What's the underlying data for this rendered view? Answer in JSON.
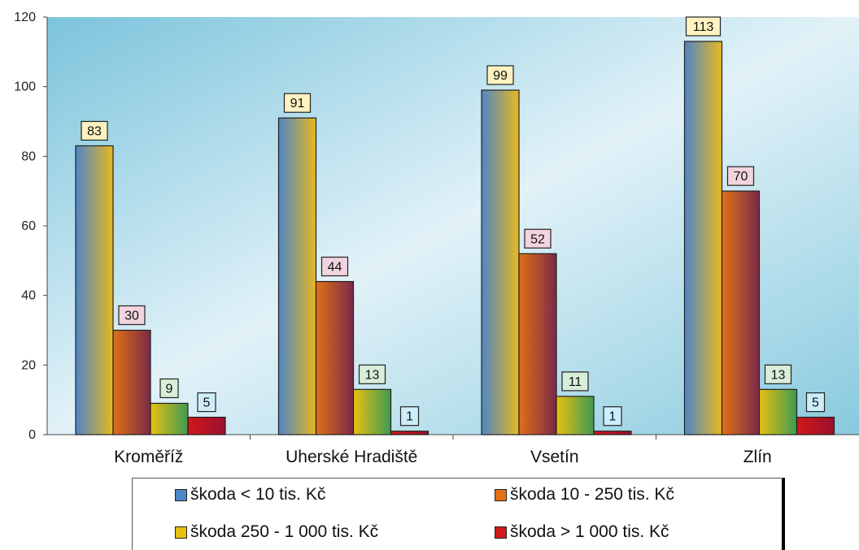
{
  "chart_data": {
    "type": "bar",
    "title": "",
    "xlabel": "",
    "ylabel": "",
    "ylim": [
      0,
      120
    ],
    "yticks": [
      "0",
      "20",
      "40",
      "60",
      "80",
      "100",
      "120"
    ],
    "categories": [
      "Kroměříž",
      "Uherské Hradiště",
      "Vsetín",
      "Zlín"
    ],
    "grid": false,
    "legend_position": "bottom",
    "series": [
      {
        "name": "škoda < 10 tis. Kč",
        "values": [
          83,
          91,
          99,
          113
        ],
        "color": "#4f86c6",
        "color2": "#e8b820",
        "label_bg": "#fff2c0"
      },
      {
        "name": "škoda 10 - 250 tis. Kč",
        "values": [
          30,
          44,
          52,
          70
        ],
        "color": "#e07018",
        "color2": "#7a2a48",
        "label_bg": "#f2d4de"
      },
      {
        "name": "škoda 250 - 1 000 tis. Kč",
        "values": [
          9,
          13,
          11,
          13
        ],
        "color": "#e8c010",
        "color2": "#3f9a52",
        "label_bg": "#d7eed9"
      },
      {
        "name": "škoda > 1 000 tis. Kč",
        "values": [
          5,
          1,
          1,
          5
        ],
        "color": "#d01818",
        "color2": "#9a1030",
        "label_bg": "#cceefc"
      }
    ]
  }
}
